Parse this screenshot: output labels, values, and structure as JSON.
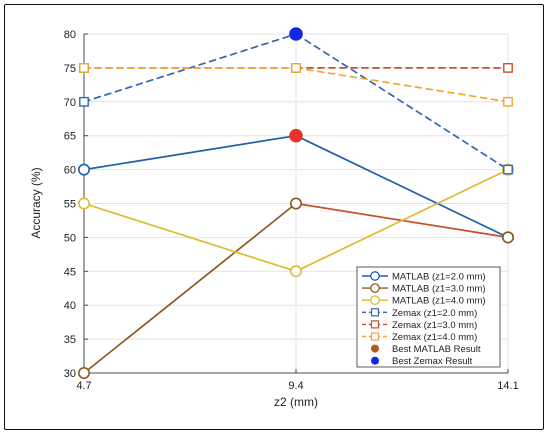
{
  "chart_data": {
    "type": "line",
    "xlabel": "z2 (mm)",
    "ylabel": "Accuracy (%)",
    "x": [
      4.7,
      9.4,
      14.1
    ],
    "x_tick_labels": [
      "4.7",
      "9.4",
      "14.1"
    ],
    "xlim": [
      4.7,
      14.1
    ],
    "ylim": [
      30,
      80
    ],
    "y_ticks": [
      30,
      35,
      40,
      45,
      50,
      55,
      60,
      65,
      70,
      75,
      80
    ],
    "grid": true,
    "legend_position": "bottom-right",
    "series": [
      {
        "name": "MATLAB (z1=2.0 mm)",
        "values": [
          60,
          65,
          50
        ],
        "color": "#1f5fa8",
        "dash": false,
        "marker": "circle"
      },
      {
        "name": "MATLAB (z1=3.0 mm)",
        "values": [
          30,
          55,
          50
        ],
        "color": "#8a5a22",
        "dash": false,
        "marker": "circle"
      },
      {
        "name": "MATLAB (z1=4.0 mm)",
        "values": [
          55,
          45,
          60
        ],
        "color": "#e0b935",
        "dash": false,
        "marker": "circle"
      },
      {
        "name": "Zemax (z1=2.0 mm)",
        "values": [
          70,
          80,
          60
        ],
        "color": "#2f69b3",
        "dash": true,
        "marker": "square"
      },
      {
        "name": "Zemax (z1=3.0 mm)",
        "values": [
          75,
          75,
          75
        ],
        "color": "#c8502a",
        "dash": true,
        "marker": "square"
      },
      {
        "name": "Zemax (z1=4.0 mm)",
        "values": [
          75,
          75,
          70
        ],
        "color": "#f0a732",
        "dash": true,
        "marker": "square"
      }
    ],
    "segment_color_overrides": [
      {
        "series": 1,
        "segment": 1,
        "color": "#c8502a"
      }
    ],
    "highlights": [
      {
        "name": "Best MATLAB Result",
        "x": 9.4,
        "y": 65,
        "color": "#e8352a",
        "legend_color": "#b5561c"
      },
      {
        "name": "Best Zemax Result",
        "x": 9.4,
        "y": 80,
        "color": "#1426e6",
        "legend_color": "#1426e6"
      }
    ]
  }
}
